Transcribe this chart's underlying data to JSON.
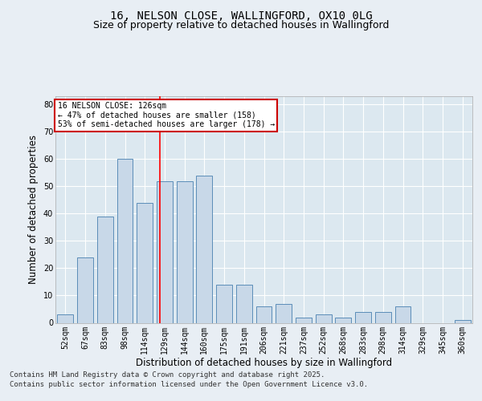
{
  "title_line1": "16, NELSON CLOSE, WALLINGFORD, OX10 0LG",
  "title_line2": "Size of property relative to detached houses in Wallingford",
  "xlabel": "Distribution of detached houses by size in Wallingford",
  "ylabel": "Number of detached properties",
  "categories": [
    "52sqm",
    "67sqm",
    "83sqm",
    "98sqm",
    "114sqm",
    "129sqm",
    "144sqm",
    "160sqm",
    "175sqm",
    "191sqm",
    "206sqm",
    "221sqm",
    "237sqm",
    "252sqm",
    "268sqm",
    "283sqm",
    "298sqm",
    "314sqm",
    "329sqm",
    "345sqm",
    "360sqm"
  ],
  "values": [
    3,
    24,
    39,
    60,
    44,
    52,
    52,
    54,
    14,
    14,
    6,
    7,
    2,
    3,
    2,
    4,
    4,
    6,
    0,
    0,
    1
  ],
  "bar_color": "#c8d8e8",
  "bar_edge_color": "#5b8db8",
  "bar_width": 0.8,
  "ylim": [
    0,
    83
  ],
  "yticks": [
    0,
    10,
    20,
    30,
    40,
    50,
    60,
    70,
    80
  ],
  "red_line_x": 4.75,
  "annotation_text": "16 NELSON CLOSE: 126sqm\n← 47% of detached houses are smaller (158)\n53% of semi-detached houses are larger (178) →",
  "annotation_box_color": "#ffffff",
  "annotation_box_edge": "#cc0000",
  "footer_line1": "Contains HM Land Registry data © Crown copyright and database right 2025.",
  "footer_line2": "Contains public sector information licensed under the Open Government Licence v3.0.",
  "background_color": "#e8eef4",
  "plot_bg_color": "#dce8f0",
  "grid_color": "#ffffff",
  "title_fontsize": 10,
  "subtitle_fontsize": 9,
  "tick_fontsize": 7,
  "label_fontsize": 8.5,
  "footer_fontsize": 6.5
}
